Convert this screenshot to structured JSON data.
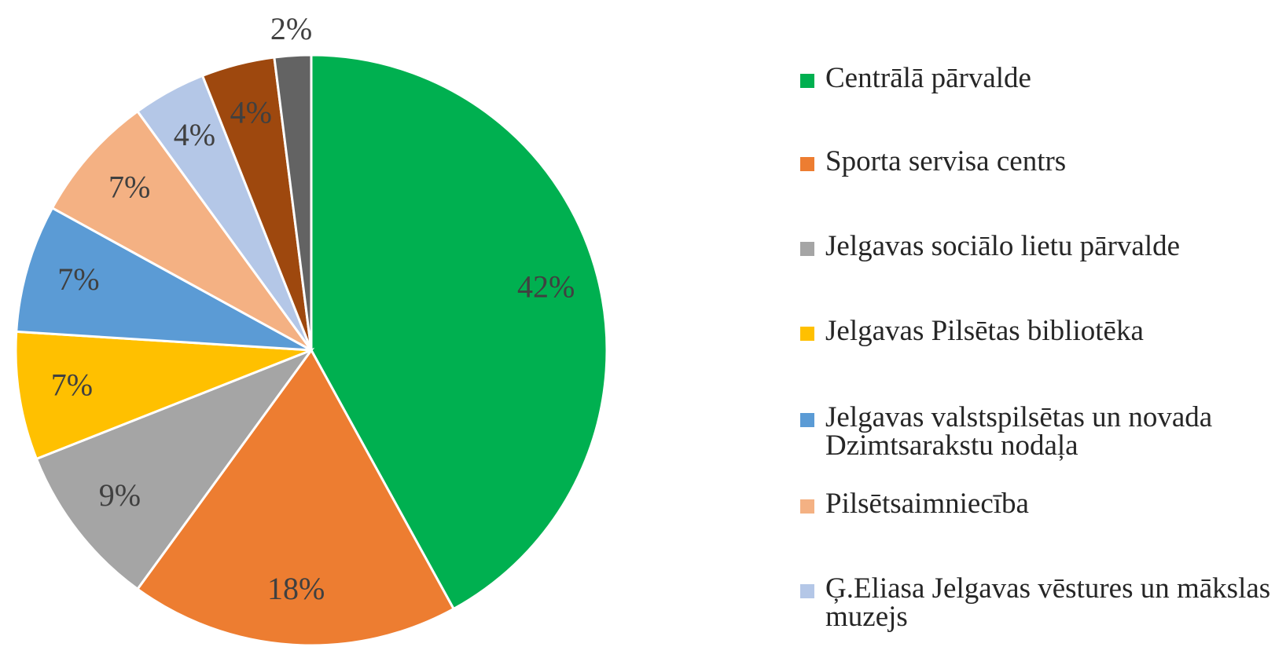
{
  "chart_data": {
    "type": "pie",
    "categories": [
      "Centrālā pārvalde",
      "Sporta servisa centrs",
      "Jelgavas sociālo lietu pārvalde",
      "Jelgavas Pilsētas bibliotēka",
      "Jelgavas valstspilsētas un novada Dzimtsarakstu nodaļa",
      "Pilsētsaimniecība",
      "Ģ.Eliasa Jelgavas vēstures un mākslas muzejs",
      null,
      null
    ],
    "values": [
      42,
      18,
      9,
      7,
      7,
      7,
      4,
      4,
      2
    ],
    "value_labels": [
      "42%",
      "18%",
      "9%",
      "7%",
      "7%",
      "7%",
      "4%",
      "4%",
      "2%"
    ],
    "colors": [
      "#00b050",
      "#ed7d31",
      "#a5a5a5",
      "#ffc000",
      "#5b9bd5",
      "#f4b183",
      "#b4c7e7",
      "#9e480e",
      "#636363"
    ],
    "legend": "right"
  }
}
